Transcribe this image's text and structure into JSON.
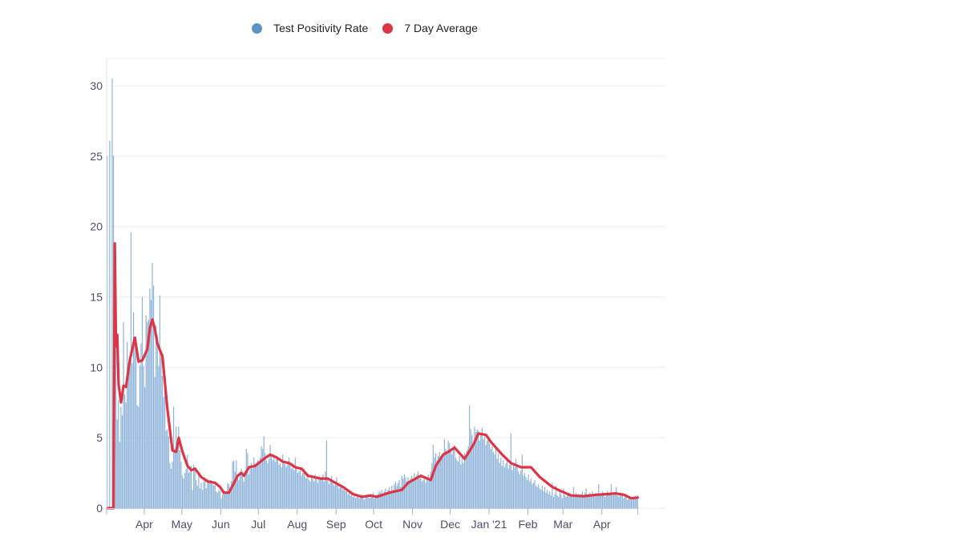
{
  "legend": [
    {
      "label": "Test Positivity Rate",
      "color": "#5b93c7"
    },
    {
      "label": "7 Day Average",
      "color": "#dc3545"
    }
  ],
  "chart_data": {
    "type": "bar",
    "title": "",
    "xlabel": "",
    "ylabel": "",
    "grid": true,
    "legend_position": "top",
    "ylim": [
      0,
      33
    ],
    "xlim": [
      "2020-03-02",
      "2021-04-29"
    ],
    "y_ticks": [
      0,
      5,
      10,
      15,
      20,
      25,
      30
    ],
    "x_ticks": [
      {
        "date": "2020-04-01",
        "label": "Apr"
      },
      {
        "date": "2020-05-01",
        "label": "May"
      },
      {
        "date": "2020-06-01",
        "label": "Jun"
      },
      {
        "date": "2020-07-01",
        "label": "Jul"
      },
      {
        "date": "2020-08-01",
        "label": "Aug"
      },
      {
        "date": "2020-09-01",
        "label": "Sep"
      },
      {
        "date": "2020-10-01",
        "label": "Oct"
      },
      {
        "date": "2020-11-01",
        "label": "Nov"
      },
      {
        "date": "2020-12-01",
        "label": "Dec"
      },
      {
        "date": "2021-01-01",
        "label": "Jan '21"
      },
      {
        "date": "2021-02-01",
        "label": "Feb"
      },
      {
        "date": "2021-03-01",
        "label": "Mar"
      },
      {
        "date": "2021-04-01",
        "label": "Apr"
      }
    ],
    "series": [
      {
        "name": "Test Positivity Rate",
        "type": "bar",
        "color": "#8fb4da",
        "start_date": "2020-03-02",
        "interval": "daily",
        "values": [
          25,
          0,
          26.1,
          0,
          30.5,
          25,
          4.8,
          13.2,
          6.3,
          7.7,
          4.7,
          7.2,
          6.6,
          13.2,
          8.1,
          7.5,
          11.8,
          10.2,
          10.6,
          19.6,
          10.3,
          13.9,
          11.8,
          12.2,
          7.3,
          7.2,
          10.1,
          11.7,
          15.0,
          10.1,
          8.6,
          13.7,
          13.2,
          13.4,
          15.6,
          14.8,
          17.4,
          15.8,
          9.3,
          13.0,
          12.3,
          10.1,
          15.1,
          11.2,
          9.4,
          7.9,
          8.3,
          5.5,
          5.6,
          5.1,
          3.2,
          2.8,
          3.3,
          7.2,
          4.0,
          5.8,
          4.6,
          5.8,
          4.1,
          3.3,
          2.3,
          2.1,
          2.5,
          2.8,
          3.8,
          2.5,
          2.6,
          3.0,
          1.3,
          3.1,
          2.9,
          2.0,
          1.6,
          2.5,
          1.4,
          1.8,
          1.3,
          1.9,
          2.2,
          1.4,
          2.1,
          1.9,
          1.8,
          2.0,
          1.7,
          1.6,
          1.8,
          1.2,
          1.1,
          1.3,
          1.2,
          0.7,
          1.0,
          1.3,
          1.2,
          1.1,
          1.8,
          1.7,
          1.5,
          1.9,
          3.3,
          3.4,
          2.6,
          3.4,
          2.3,
          2.0,
          2.6,
          2.8,
          2.4,
          1.9,
          2.6,
          4.2,
          3.9,
          2.4,
          3.0,
          3.2,
          2.8,
          3.6,
          3.2,
          3.0,
          3.4,
          3.3,
          3.6,
          4.4,
          4.2,
          5.1,
          3.9,
          3.4,
          3.2,
          3.5,
          4.5,
          3.8,
          3.4,
          3.7,
          3.3,
          3.6,
          3.5,
          3.1,
          3.2,
          2.9,
          3.8,
          3.2,
          3.1,
          2.9,
          3.3,
          3.6,
          3.0,
          2.8,
          3.2,
          2.7,
          3.6,
          3.0,
          2.5,
          2.6,
          2.9,
          2.3,
          2.5,
          2.8,
          2.2,
          2.1,
          2.5,
          2.0,
          1.9,
          2.3,
          2.1,
          1.9,
          2.4,
          2.2,
          1.8,
          2.3,
          2.0,
          2.2,
          2.4,
          1.9,
          2.6,
          4.8,
          2.0,
          1.7,
          2.0,
          2.3,
          1.9,
          1.6,
          1.8,
          2.2,
          1.7,
          1.4,
          1.5,
          1.6,
          1.3,
          1.4,
          1.2,
          1.3,
          1.0,
          1.1,
          0.9,
          1.0,
          0.8,
          0.9,
          0.7,
          0.8,
          0.9,
          0.7,
          0.8,
          1.0,
          0.9,
          0.6,
          0.8,
          0.9,
          1.0,
          0.7,
          0.9,
          0.8,
          1.1,
          0.7,
          0.8,
          0.9,
          1.0,
          1.2,
          1.1,
          1.3,
          1.0,
          1.2,
          1.4,
          1.1,
          1.3,
          1.5,
          1.2,
          1.6,
          1.3,
          1.7,
          1.9,
          1.6,
          1.8,
          2.0,
          1.5,
          2.3,
          2.1,
          2.4,
          2.2,
          1.9,
          2.2,
          1.8,
          2.1,
          2.3,
          2.0,
          2.5,
          2.2,
          2.4,
          2.6,
          2.1,
          2.3,
          1.9,
          2.0,
          2.2,
          1.8,
          2.1,
          2.4,
          2.0,
          2.6,
          3.2,
          4.5,
          3.6,
          3.9,
          3.4,
          3.7,
          4.0,
          3.6,
          3.8,
          3.9,
          4.9,
          4.2,
          3.9,
          4.8,
          4.6,
          4.1,
          3.8,
          4.3,
          4.5,
          3.6,
          3.4,
          3.3,
          3.7,
          3.1,
          3.6,
          3.2,
          3.9,
          3.5,
          4.1,
          4.4,
          7.3,
          5.6,
          5.2,
          4.6,
          5.8,
          5.4,
          5.6,
          5.5,
          4.8,
          5.3,
          5.7,
          4.9,
          5.1,
          4.5,
          4.8,
          5.0,
          4.6,
          4.2,
          4.4,
          4.0,
          3.8,
          4.3,
          3.5,
          3.9,
          3.2,
          3.6,
          3.0,
          3.4,
          2.9,
          3.2,
          3.5,
          2.8,
          3.1,
          5.3,
          2.7,
          3.2,
          2.9,
          3.5,
          3.1,
          2.6,
          2.4,
          2.7,
          3.8,
          2.3,
          2.5,
          2.2,
          2.0,
          2.4,
          1.9,
          2.1,
          1.7,
          1.8,
          2.0,
          1.6,
          1.5,
          1.7,
          1.4,
          1.3,
          1.6,
          1.2,
          1.5,
          1.1,
          1.3,
          1.0,
          1.2,
          0.9,
          1.8,
          0.8,
          1.0,
          1.6,
          0.9,
          0.8,
          1.2,
          1.0,
          0.7,
          1.4,
          0.9,
          0.8,
          1.0,
          0.9,
          1.1,
          1.0,
          0.8,
          1.5,
          0.9,
          1.1,
          0.8,
          1.0,
          0.9,
          1.0,
          1.2,
          0.9,
          1.1,
          1.4,
          0.8,
          1.0,
          1.1,
          0.9,
          1.2,
          1.0,
          0.9,
          1.1,
          1.0,
          1.7,
          0.9,
          1.0,
          1.2,
          1.1,
          0.8,
          1.0,
          1.2,
          1.0,
          1.1,
          1.7,
          0.9,
          1.0,
          1.1,
          1.5,
          0.9,
          0.8,
          1.0,
          0.9,
          1.0,
          0.7,
          0.8,
          0.9,
          0.6,
          0.8,
          0.7,
          0.6,
          0.8,
          0.7,
          0.9,
          0.7,
          0.9
        ]
      },
      {
        "name": "7 Day Average",
        "type": "line",
        "color": "#dc3545",
        "points": [
          [
            "2020-03-02",
            0
          ],
          [
            "2020-03-07",
            0
          ],
          [
            "2020-03-08",
            18.8
          ],
          [
            "2020-03-09",
            11.5
          ],
          [
            "2020-03-10",
            12.3
          ],
          [
            "2020-03-11",
            8.8
          ],
          [
            "2020-03-13",
            7.5
          ],
          [
            "2020-03-15",
            8.7
          ],
          [
            "2020-03-17",
            8.6
          ],
          [
            "2020-03-20",
            10.5
          ],
          [
            "2020-03-24",
            12.1
          ],
          [
            "2020-03-27",
            10.4
          ],
          [
            "2020-03-30",
            10.5
          ],
          [
            "2020-04-03",
            11.3
          ],
          [
            "2020-04-05",
            12.8
          ],
          [
            "2020-04-07",
            13.4
          ],
          [
            "2020-04-09",
            12.7
          ],
          [
            "2020-04-11",
            11.7
          ],
          [
            "2020-04-14",
            11.0
          ],
          [
            "2020-04-15",
            10.8
          ],
          [
            "2020-04-19",
            7.0
          ],
          [
            "2020-04-23",
            4.1
          ],
          [
            "2020-04-26",
            4.0
          ],
          [
            "2020-04-28",
            5.0
          ],
          [
            "2020-05-01",
            4.0
          ],
          [
            "2020-05-05",
            3.0
          ],
          [
            "2020-05-08",
            2.7
          ],
          [
            "2020-05-11",
            2.8
          ],
          [
            "2020-05-16",
            2.2
          ],
          [
            "2020-05-21",
            1.9
          ],
          [
            "2020-05-27",
            1.8
          ],
          [
            "2020-05-31",
            1.5
          ],
          [
            "2020-06-03",
            1.1
          ],
          [
            "2020-06-07",
            1.1
          ],
          [
            "2020-06-10",
            1.6
          ],
          [
            "2020-06-14",
            2.3
          ],
          [
            "2020-06-17",
            2.5
          ],
          [
            "2020-06-19",
            2.3
          ],
          [
            "2020-06-23",
            2.9
          ],
          [
            "2020-06-28",
            3.0
          ],
          [
            "2020-07-05",
            3.5
          ],
          [
            "2020-07-10",
            3.8
          ],
          [
            "2020-07-15",
            3.6
          ],
          [
            "2020-07-20",
            3.3
          ],
          [
            "2020-07-25",
            3.2
          ],
          [
            "2020-07-30",
            2.9
          ],
          [
            "2020-08-04",
            2.8
          ],
          [
            "2020-08-09",
            2.3
          ],
          [
            "2020-08-19",
            2.1
          ],
          [
            "2020-08-25",
            2.1
          ],
          [
            "2020-08-31",
            1.8
          ],
          [
            "2020-09-06",
            1.5
          ],
          [
            "2020-09-14",
            1.0
          ],
          [
            "2020-09-21",
            0.8
          ],
          [
            "2020-09-28",
            0.9
          ],
          [
            "2020-10-03",
            0.8
          ],
          [
            "2020-10-13",
            1.1
          ],
          [
            "2020-10-23",
            1.3
          ],
          [
            "2020-10-28",
            1.8
          ],
          [
            "2020-11-03",
            2.1
          ],
          [
            "2020-11-07",
            2.3
          ],
          [
            "2020-11-15",
            2.0
          ],
          [
            "2020-11-19",
            3.0
          ],
          [
            "2020-11-25",
            3.8
          ],
          [
            "2020-11-29",
            4.0
          ],
          [
            "2020-12-04",
            4.3
          ],
          [
            "2020-12-12",
            3.5
          ],
          [
            "2020-12-19",
            4.5
          ],
          [
            "2020-12-23",
            5.3
          ],
          [
            "2020-12-29",
            5.2
          ],
          [
            "2021-01-02",
            4.7
          ],
          [
            "2021-01-06",
            4.3
          ],
          [
            "2021-01-11",
            3.8
          ],
          [
            "2021-01-18",
            3.2
          ],
          [
            "2021-01-26",
            2.9
          ],
          [
            "2021-02-03",
            2.9
          ],
          [
            "2021-02-10",
            2.2
          ],
          [
            "2021-02-20",
            1.5
          ],
          [
            "2021-02-27",
            1.2
          ],
          [
            "2021-03-07",
            0.9
          ],
          [
            "2021-03-17",
            0.85
          ],
          [
            "2021-03-27",
            0.95
          ],
          [
            "2021-04-06",
            1.0
          ],
          [
            "2021-04-11",
            1.05
          ],
          [
            "2021-04-18",
            0.95
          ],
          [
            "2021-04-24",
            0.7
          ],
          [
            "2021-04-29",
            0.75
          ]
        ]
      }
    ]
  }
}
